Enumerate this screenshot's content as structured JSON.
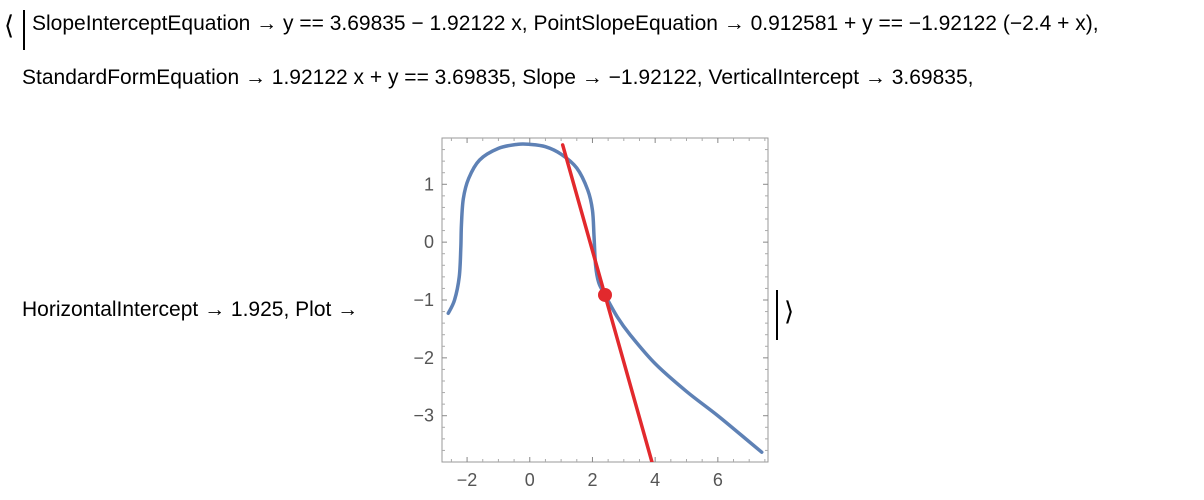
{
  "association": {
    "open_bracket": "⟨",
    "close_bracket": "⟩",
    "line1": "SlopeInterceptEquation → y == 3.69835 − 1.92122 x, PointSlopeEquation → 0.912581 + y == −1.92122 (−2.4 + x),",
    "line2": "StandardFormEquation → 1.92122 x + y == 3.69835, Slope → −1.92122, VerticalIntercept → 3.69835,",
    "line3": "HorizontalIntercept → 1.925, Plot →"
  },
  "chart_data": {
    "type": "line",
    "xlim": [
      -2.8,
      7.6
    ],
    "ylim": [
      -3.8,
      1.8
    ],
    "x_ticks": [
      -2,
      0,
      2,
      4,
      6
    ],
    "x_tick_labels": [
      "−2",
      "0",
      "2",
      "4",
      "6"
    ],
    "y_ticks": [
      1,
      0,
      -1,
      -2,
      -3
    ],
    "y_tick_labels": [
      "1",
      "0",
      "−1",
      "−2",
      "−3"
    ],
    "grid": false,
    "series": [
      {
        "color": "#5e81b5",
        "points": [
          [
            -2.6,
            -1.23
          ],
          [
            -2.4,
            -1.0
          ],
          [
            -2.25,
            -0.6
          ],
          [
            -2.2,
            -0.1
          ],
          [
            -2.18,
            0.3
          ],
          [
            -2.12,
            0.75
          ],
          [
            -1.95,
            1.1
          ],
          [
            -1.6,
            1.42
          ],
          [
            -1.0,
            1.62
          ],
          [
            -0.4,
            1.69
          ],
          [
            0.0,
            1.69
          ],
          [
            0.5,
            1.65
          ],
          [
            1.0,
            1.52
          ],
          [
            1.5,
            1.28
          ],
          [
            1.85,
            0.9
          ],
          [
            2.0,
            0.55
          ],
          [
            2.05,
            0.1
          ],
          [
            2.1,
            -0.4
          ],
          [
            2.2,
            -0.7
          ],
          [
            2.4,
            -0.912581
          ],
          [
            2.8,
            -1.3
          ],
          [
            3.2,
            -1.6
          ],
          [
            4.0,
            -2.1
          ],
          [
            5.0,
            -2.58
          ],
          [
            6.0,
            -3.0
          ],
          [
            7.0,
            -3.45
          ],
          [
            7.4,
            -3.63
          ]
        ]
      },
      {
        "color": "#e2292d",
        "points": [
          [
            1.05,
            1.68
          ],
          [
            3.95,
            -3.9
          ]
        ]
      }
    ],
    "highlight_point": {
      "x": 2.4,
      "y": -0.912581,
      "color": "#e2292d"
    }
  }
}
